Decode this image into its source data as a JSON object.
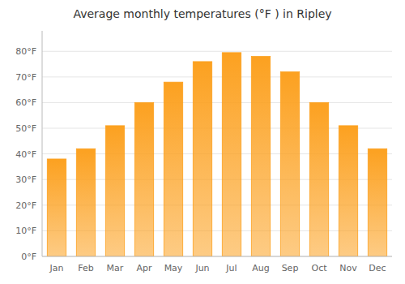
{
  "chart_data": {
    "type": "bar",
    "title": "Average monthly temperatures (°F ) in Ripley",
    "categories": [
      "Jan",
      "Feb",
      "Mar",
      "Apr",
      "May",
      "Jun",
      "Jul",
      "Aug",
      "Sep",
      "Oct",
      "Nov",
      "Dec"
    ],
    "values": [
      38,
      42,
      51,
      60,
      68,
      76,
      79.5,
      78,
      72,
      60,
      51,
      42
    ],
    "color": "#FCA120",
    "ylim": [
      0,
      88
    ],
    "yticks": [
      {
        "value": 0,
        "label": "0°F"
      },
      {
        "value": 10,
        "label": "10°F"
      },
      {
        "value": 20,
        "label": "20°F"
      },
      {
        "value": 30,
        "label": "30°F"
      },
      {
        "value": 40,
        "label": "40°F"
      },
      {
        "value": 50,
        "label": "50°F"
      },
      {
        "value": 60,
        "label": "60°F"
      },
      {
        "value": 70,
        "label": "70°F"
      },
      {
        "value": 80,
        "label": "80°F"
      }
    ],
    "grid": true
  }
}
